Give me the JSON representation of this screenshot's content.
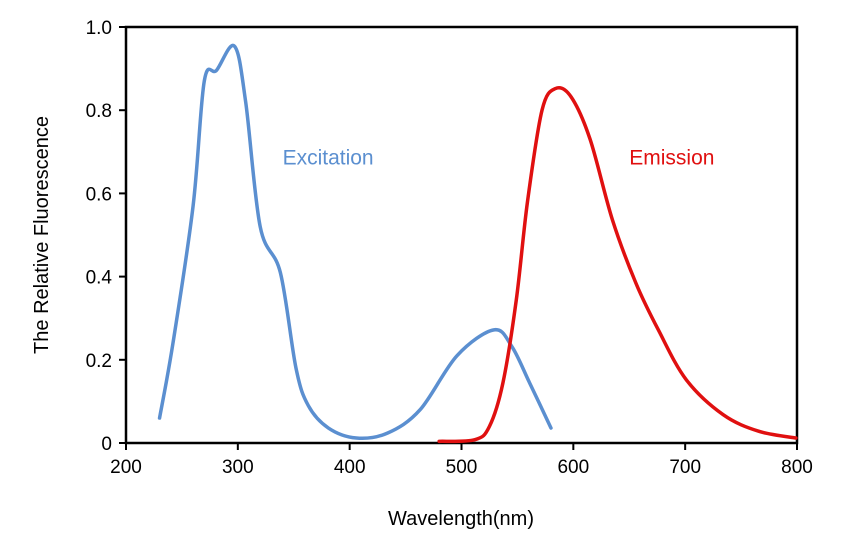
{
  "chart_data": {
    "type": "line",
    "title": "",
    "xlabel": "Wavelength(nm)",
    "ylabel": "The Relative Fluorescence",
    "xlim": [
      200,
      800
    ],
    "ylim": [
      0,
      1.0
    ],
    "xticks": [
      200,
      300,
      400,
      500,
      600,
      700,
      800
    ],
    "xtick_labels": [
      "200",
      "300",
      "400",
      "500",
      "600",
      "700",
      "800"
    ],
    "yticks": [
      0,
      0.2,
      0.4,
      0.6,
      0.8,
      1.0
    ],
    "ytick_labels": [
      "0",
      "0.2",
      "0.4",
      "0.6",
      "0.8",
      "1.0"
    ],
    "grid": false,
    "series": [
      {
        "name": "Excitation",
        "color": "#5b8fd0",
        "label_at": [
          340,
          0.67
        ],
        "points": [
          [
            230,
            0.06
          ],
          [
            242,
            0.24
          ],
          [
            260,
            0.57
          ],
          [
            270,
            0.87
          ],
          [
            281,
            0.896
          ],
          [
            297,
            0.954
          ],
          [
            307,
            0.82
          ],
          [
            320,
            0.52
          ],
          [
            338,
            0.41
          ],
          [
            352,
            0.18
          ],
          [
            363,
            0.09
          ],
          [
            381,
            0.036
          ],
          [
            406,
            0.012
          ],
          [
            434,
            0.024
          ],
          [
            463,
            0.08
          ],
          [
            496,
            0.21
          ],
          [
            529,
            0.272
          ],
          [
            545,
            0.232
          ],
          [
            561,
            0.144
          ],
          [
            580,
            0.036
          ]
        ]
      },
      {
        "name": "Emission",
        "color": "#e01010",
        "label_at": [
          650,
          0.67
        ],
        "points": [
          [
            480,
            0.004
          ],
          [
            512,
            0.008
          ],
          [
            525,
            0.04
          ],
          [
            537,
            0.144
          ],
          [
            549,
            0.344
          ],
          [
            559,
            0.58
          ],
          [
            572,
            0.8
          ],
          [
            584,
            0.852
          ],
          [
            598,
            0.832
          ],
          [
            615,
            0.73
          ],
          [
            635,
            0.536
          ],
          [
            656,
            0.384
          ],
          [
            676,
            0.272
          ],
          [
            701,
            0.152
          ],
          [
            734,
            0.068
          ],
          [
            766,
            0.028
          ],
          [
            799,
            0.012
          ]
        ]
      }
    ]
  }
}
